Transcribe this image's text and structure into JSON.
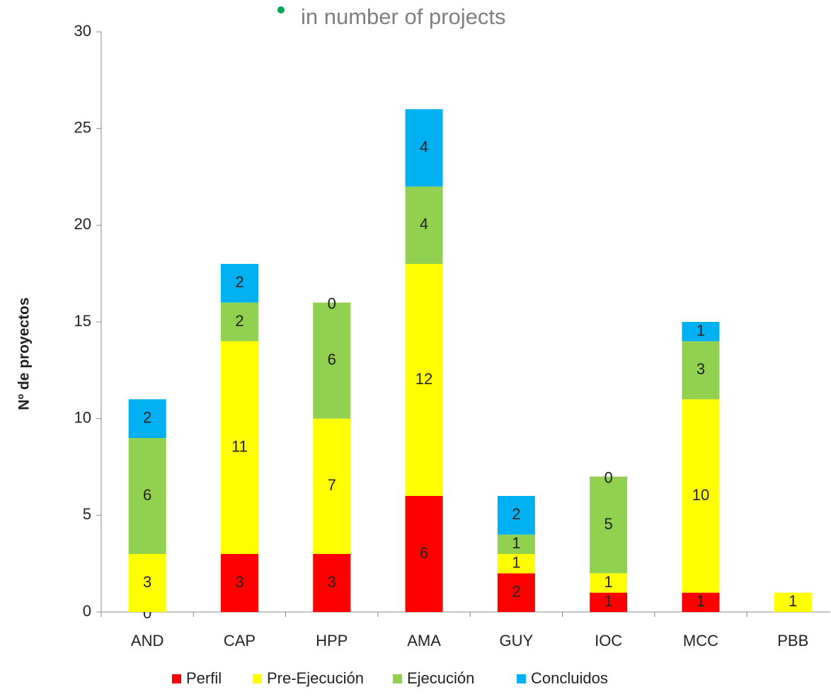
{
  "chart_data": {
    "type": "stacked_bar",
    "title": "in number of projects",
    "y_label": "Nº de proyectos",
    "categories": [
      "AND",
      "CAP",
      "HPP",
      "AMA",
      "GUY",
      "IOC",
      "MCC",
      "PBB"
    ],
    "series": [
      {
        "name": "Perfil",
        "color": "#ff0000",
        "values": [
          0,
          3,
          3,
          6,
          2,
          1,
          1,
          null
        ]
      },
      {
        "name": "Pre-Ejecución",
        "color": "#ffff00",
        "values": [
          3,
          11,
          7,
          12,
          1,
          1,
          10,
          1
        ]
      },
      {
        "name": "Ejecución",
        "color": "#92d050",
        "values": [
          6,
          2,
          6,
          4,
          1,
          5,
          3,
          null
        ]
      },
      {
        "name": "Concluidos",
        "color": "#00b0f0",
        "values": [
          2,
          2,
          0,
          4,
          2,
          0,
          1,
          null
        ]
      }
    ],
    "ylim": [
      0,
      30
    ],
    "yticks": [
      0,
      5,
      10,
      15,
      20,
      25,
      30
    ],
    "legend": "bottom"
  }
}
